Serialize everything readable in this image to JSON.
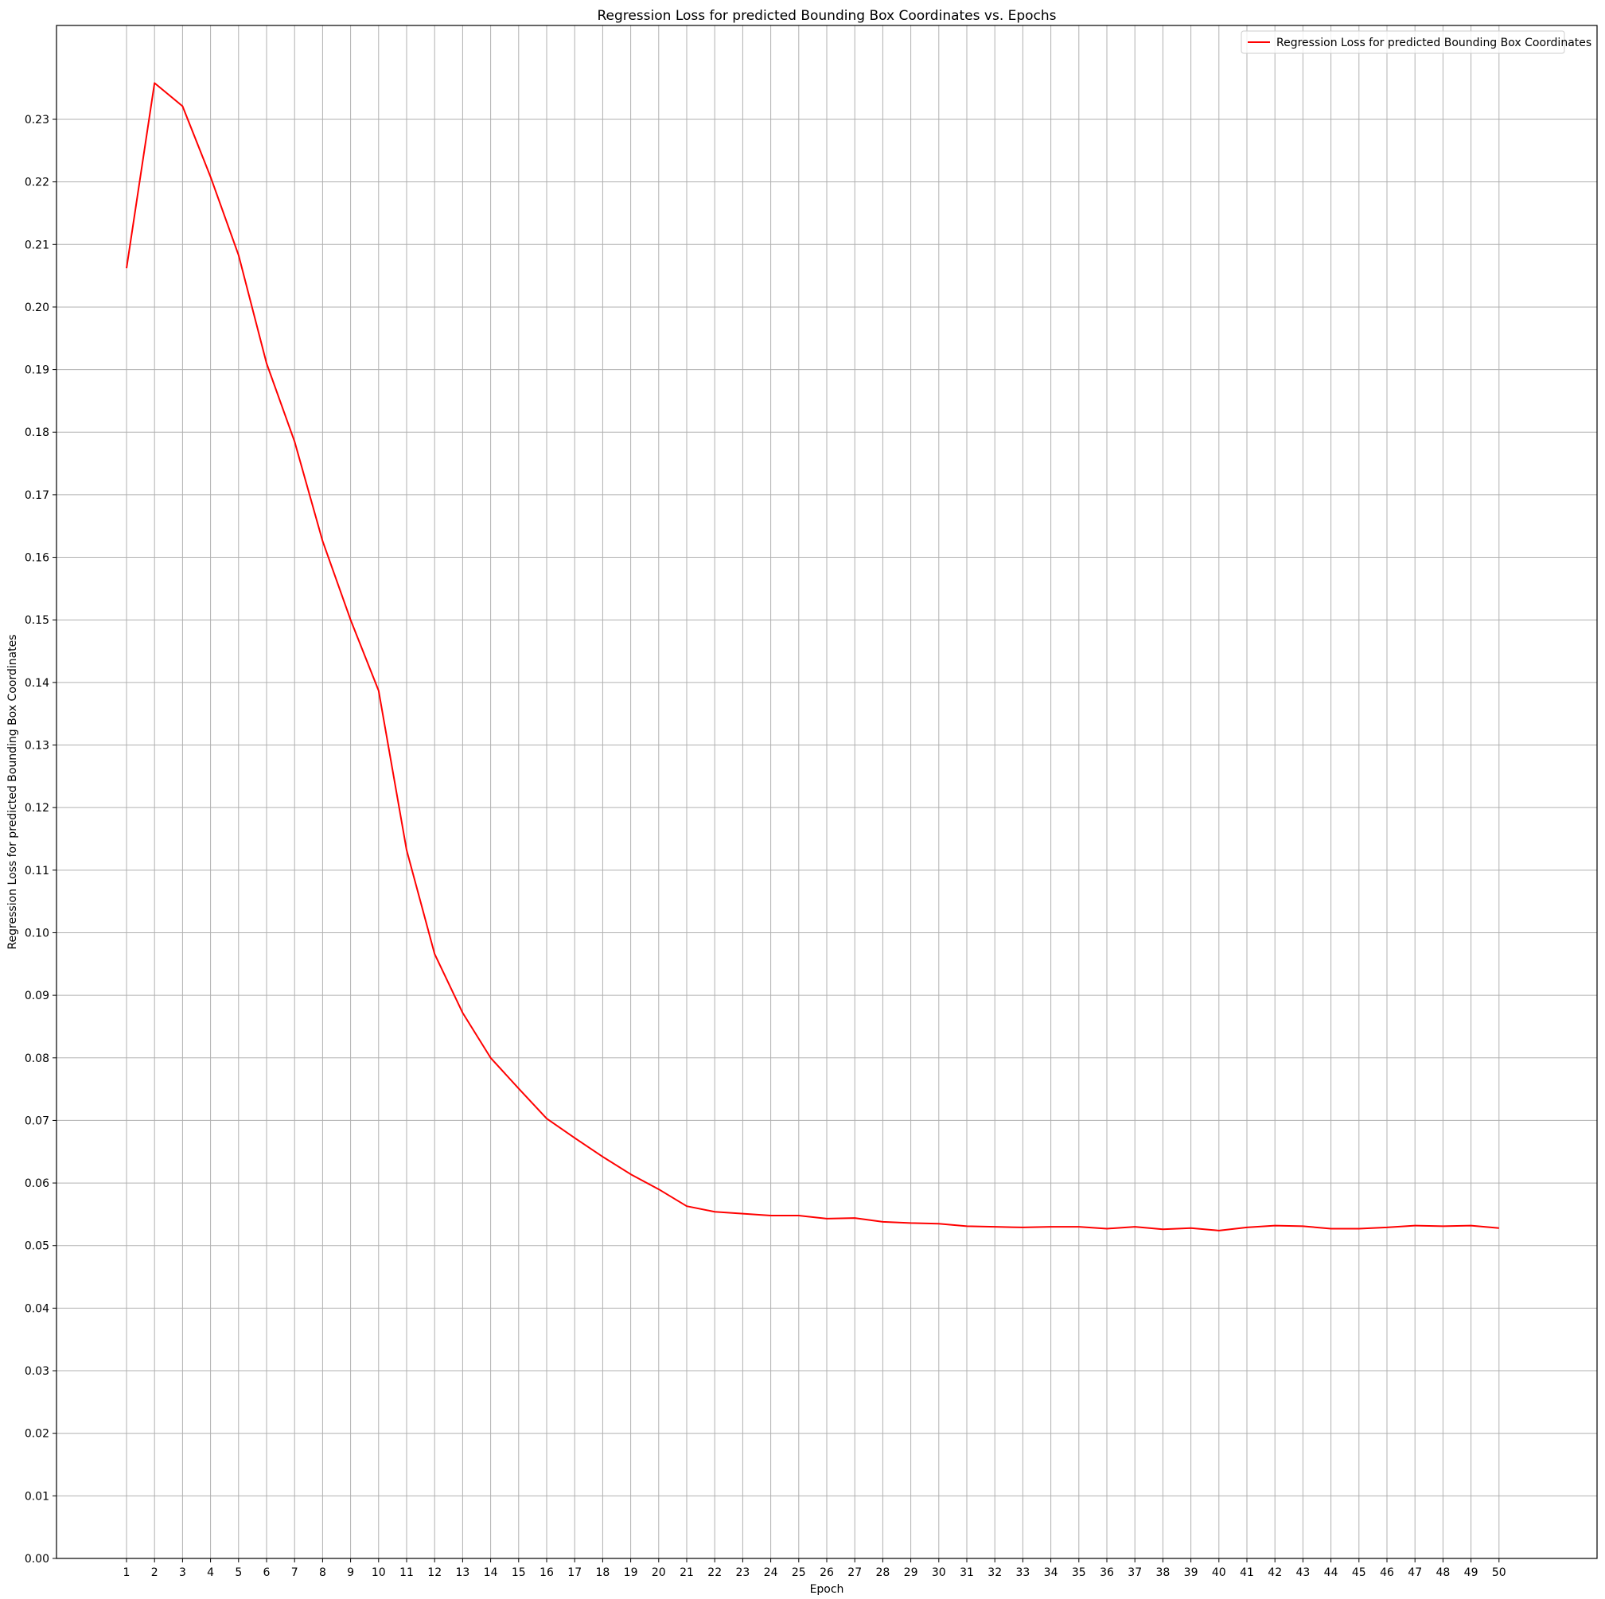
{
  "chart_data": {
    "type": "line",
    "title": "Regression Loss for predicted Bounding Box Coordinates vs. Epochs",
    "xlabel": "Epoch",
    "ylabel": "Regression Loss for predicted Bounding Box Coordinates",
    "xlim": [
      -1.5,
      53.5
    ],
    "ylim": [
      0.0,
      0.245
    ],
    "x_ticks": [
      1,
      2,
      3,
      4,
      5,
      6,
      7,
      8,
      9,
      10,
      11,
      12,
      13,
      14,
      15,
      16,
      17,
      18,
      19,
      20,
      21,
      22,
      23,
      24,
      25,
      26,
      27,
      28,
      29,
      30,
      31,
      32,
      33,
      34,
      35,
      36,
      37,
      38,
      39,
      40,
      41,
      42,
      43,
      44,
      45,
      46,
      47,
      48,
      49,
      50
    ],
    "y_ticks": [
      0.0,
      0.01,
      0.02,
      0.03,
      0.04,
      0.05,
      0.06,
      0.07,
      0.08,
      0.09,
      0.1,
      0.11,
      0.12,
      0.13,
      0.14,
      0.15,
      0.16,
      0.17,
      0.18,
      0.19,
      0.2,
      0.21,
      0.22,
      0.23
    ],
    "y_tick_labels": [
      "0.00",
      "0.01",
      "0.02",
      "0.03",
      "0.04",
      "0.05",
      "0.06",
      "0.07",
      "0.08",
      "0.09",
      "0.10",
      "0.11",
      "0.12",
      "0.13",
      "0.14",
      "0.15",
      "0.16",
      "0.17",
      "0.18",
      "0.19",
      "0.20",
      "0.21",
      "0.22",
      "0.23"
    ],
    "grid": true,
    "legend_position": "top-right",
    "x": [
      1,
      2,
      3,
      4,
      5,
      6,
      7,
      8,
      9,
      10,
      11,
      12,
      13,
      14,
      15,
      16,
      17,
      18,
      19,
      20,
      21,
      22,
      23,
      24,
      25,
      26,
      27,
      28,
      29,
      30,
      31,
      32,
      33,
      34,
      35,
      36,
      37,
      38,
      39,
      40,
      41,
      42,
      43,
      44,
      45,
      46,
      47,
      48,
      49,
      50
    ],
    "series": [
      {
        "name": "Regression Loss for predicted Bounding Box Coordinates",
        "color": "#ff0000",
        "values": [
          0.2062,
          0.2358,
          0.2321,
          0.2208,
          0.2083,
          0.191,
          0.1785,
          0.1626,
          0.15,
          0.1387,
          0.1132,
          0.0966,
          0.0872,
          0.08,
          0.0751,
          0.0703,
          0.0672,
          0.0642,
          0.0614,
          0.059,
          0.0563,
          0.0554,
          0.0551,
          0.0548,
          0.0548,
          0.0543,
          0.0544,
          0.0538,
          0.0536,
          0.0535,
          0.0531,
          0.053,
          0.0529,
          0.053,
          0.053,
          0.0527,
          0.053,
          0.0526,
          0.0528,
          0.0524,
          0.0529,
          0.0532,
          0.0531,
          0.0527,
          0.0527,
          0.0529,
          0.0532,
          0.0531,
          0.0532,
          0.0528
        ]
      }
    ]
  }
}
